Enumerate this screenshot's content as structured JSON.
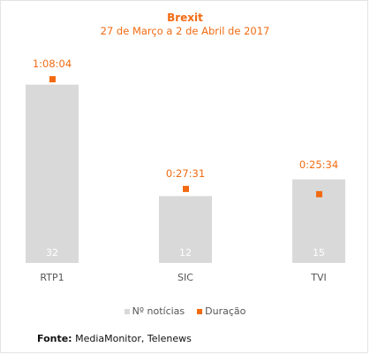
{
  "colors": {
    "accent": "#f26b12",
    "bar": "#d9d9d9",
    "bar_label": "#ffffff",
    "axis_label": "#555555"
  },
  "chart_data": {
    "type": "bar",
    "title": "Brexit",
    "subtitle": "27 de Março a 2 de Abril de 2017",
    "categories": [
      "RTP1",
      "SIC",
      "TVI"
    ],
    "series": [
      {
        "name": "Nº notícias",
        "values": [
          32,
          12,
          15
        ],
        "color": "#d9d9d9"
      },
      {
        "name": "Duração",
        "values": [
          "1:08:04",
          "0:27:31",
          "0:25:34"
        ],
        "color": "#f26b12"
      }
    ],
    "duration_seconds_axis_max": 4300,
    "count_axis_max": 34.8,
    "legend_position": "bottom",
    "grid": false
  },
  "legend": {
    "items": [
      "Nº notícias",
      "Duração"
    ]
  },
  "source": {
    "label": "Fonte:",
    "text": "MediaMonitor, Telenews"
  }
}
